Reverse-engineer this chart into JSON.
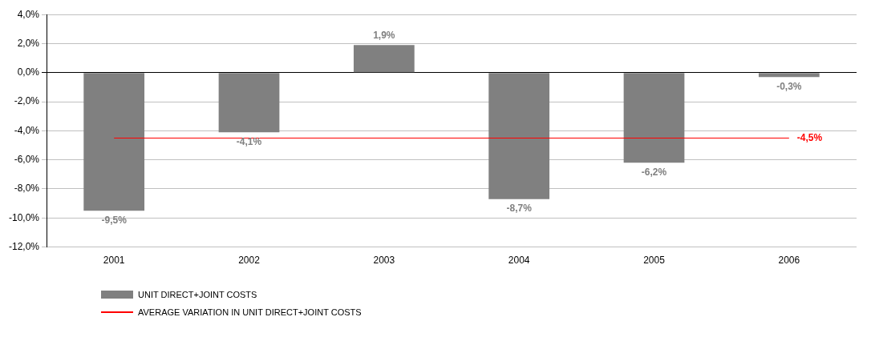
{
  "chart_data": {
    "type": "bar",
    "categories": [
      "2001",
      "2002",
      "2003",
      "2004",
      "2005",
      "2006"
    ],
    "series": [
      {
        "name": "UNIT DIRECT+JOINT COSTS",
        "color": "#808080",
        "values": [
          -9.5,
          -4.1,
          1.9,
          -8.7,
          -6.2,
          -0.3
        ],
        "value_labels": [
          "-9,5%",
          "-4,1%",
          "1,9%",
          "-8,7%",
          "-6,2%",
          "-0,3%"
        ]
      },
      {
        "name": "AVERAGE VARIATION IN UNIT DIRECT+JOINT COSTS",
        "type": "line",
        "color": "#ff0000",
        "values": [
          -4.5,
          -4.5,
          -4.5,
          -4.5,
          -4.5,
          -4.5
        ],
        "value_labels": [
          null,
          null,
          null,
          null,
          null,
          "-4,5%"
        ]
      }
    ],
    "ylim": [
      -12,
      4
    ],
    "yticks": [
      {
        "value": -12,
        "label": "-12,0%"
      },
      {
        "value": -10,
        "label": "-10,0%"
      },
      {
        "value": -8,
        "label": "-8,0%"
      },
      {
        "value": -6,
        "label": "-6,0%"
      },
      {
        "value": -4,
        "label": "-4,0%"
      },
      {
        "value": -2,
        "label": "-2,0%"
      },
      {
        "value": 0,
        "label": "0,0%"
      },
      {
        "value": 2,
        "label": "2,0%"
      },
      {
        "value": 4,
        "label": "4,0%"
      }
    ],
    "grid": "y",
    "legend": "bottom left",
    "marker": "none"
  }
}
